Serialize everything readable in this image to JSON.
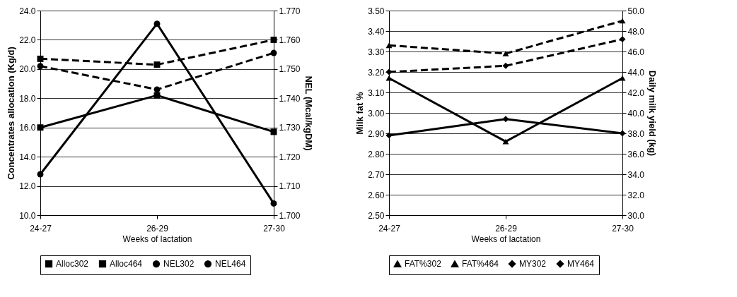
{
  "chart_data": [
    {
      "type": "line",
      "categories": [
        "24-27",
        "26-29",
        "27-30"
      ],
      "xlabel": "Weeks of lactation",
      "ylabel": "Concentrates allocation (Kg/d)",
      "y2label": "NEL (Mcal/kgDM)",
      "ylim": [
        10,
        24
      ],
      "yticks": [
        {
          "value": 10,
          "label": "10.0"
        },
        {
          "value": 12,
          "label": "12.0"
        },
        {
          "value": 14,
          "label": "14.0"
        },
        {
          "value": 16,
          "label": "16.0"
        },
        {
          "value": 18,
          "label": "18.0"
        },
        {
          "value": 20,
          "label": "20.0"
        },
        {
          "value": 22,
          "label": "22.0"
        },
        {
          "value": 24,
          "label": "24.0"
        }
      ],
      "y2lim": [
        1.7,
        1.77
      ],
      "y2ticks": [
        {
          "value": 1.7,
          "label": "1.700"
        },
        {
          "value": 1.71,
          "label": "1.710"
        },
        {
          "value": 1.72,
          "label": "1.720"
        },
        {
          "value": 1.73,
          "label": "1.730"
        },
        {
          "value": 1.74,
          "label": "1.740"
        },
        {
          "value": 1.75,
          "label": "1.750"
        },
        {
          "value": 1.76,
          "label": "1.760"
        },
        {
          "value": 1.77,
          "label": "1.770"
        }
      ],
      "grid": "y",
      "legend": "bottom",
      "series": [
        {
          "name": "Alloc302",
          "color": "#000000",
          "values": [
            16.0,
            18.2,
            15.7
          ],
          "marker": "square",
          "line_style": "solid"
        },
        {
          "name": "Alloc464",
          "color": "#000000",
          "values": [
            20.7,
            20.3,
            22.0
          ],
          "marker": "square",
          "line_style": "dashed"
        },
        {
          "name": "NEL302",
          "color": "#000000",
          "values": [
            1.714,
            1.7655,
            1.704
          ],
          "axis": "y2",
          "marker": "circle",
          "line_style": "solid"
        },
        {
          "name": "NEL464",
          "color": "#000000",
          "values": [
            1.751,
            1.743,
            1.7555
          ],
          "axis": "y2",
          "marker": "circle",
          "line_style": "dashed"
        }
      ]
    },
    {
      "type": "line",
      "categories": [
        "24-27",
        "26-29",
        "27-30"
      ],
      "xlabel": "Weeks of lactation",
      "ylabel": "Milk fat %",
      "y2label": "Daily milk yield (kg)",
      "ylim": [
        2.5,
        3.5
      ],
      "yticks": [
        {
          "value": 2.5,
          "label": "2.50"
        },
        {
          "value": 2.6,
          "label": "2.60"
        },
        {
          "value": 2.7,
          "label": "2.70"
        },
        {
          "value": 2.8,
          "label": "2.80"
        },
        {
          "value": 2.9,
          "label": "2.90"
        },
        {
          "value": 3,
          "label": "3.00"
        },
        {
          "value": 3.1,
          "label": "3.10"
        },
        {
          "value": 3.2,
          "label": "3.20"
        },
        {
          "value": 3.3,
          "label": "3.30"
        },
        {
          "value": 3.4,
          "label": "3.40"
        },
        {
          "value": 3.5,
          "label": "3.50"
        }
      ],
      "y2lim": [
        30,
        50
      ],
      "y2ticks": [
        {
          "value": 30,
          "label": "30.0"
        },
        {
          "value": 32,
          "label": "32.0"
        },
        {
          "value": 34,
          "label": "34.0"
        },
        {
          "value": 36,
          "label": "36.0"
        },
        {
          "value": 38,
          "label": "38.0"
        },
        {
          "value": 40,
          "label": "40.0"
        },
        {
          "value": 42,
          "label": "42.0"
        },
        {
          "value": 44,
          "label": "44.0"
        },
        {
          "value": 46,
          "label": "46.0"
        },
        {
          "value": 48,
          "label": "48.0"
        },
        {
          "value": 50,
          "label": "50.0"
        }
      ],
      "grid": "y",
      "legend": "bottom",
      "series": [
        {
          "name": "FAT%302",
          "color": "#000000",
          "values": [
            3.17,
            2.86,
            3.17
          ],
          "marker": "triangle",
          "line_style": "solid"
        },
        {
          "name": "FAT%464",
          "color": "#000000",
          "values": [
            3.33,
            3.29,
            3.45
          ],
          "marker": "triangle",
          "line_style": "dashed"
        },
        {
          "name": "MY302",
          "color": "#000000",
          "values": [
            37.8,
            39.4,
            38.0
          ],
          "axis": "y2",
          "marker": "diamond",
          "line_style": "solid"
        },
        {
          "name": "MY464",
          "color": "#000000",
          "values": [
            44.0,
            44.6,
            47.2
          ],
          "axis": "y2",
          "marker": "diamond",
          "line_style": "dashed"
        }
      ]
    }
  ]
}
